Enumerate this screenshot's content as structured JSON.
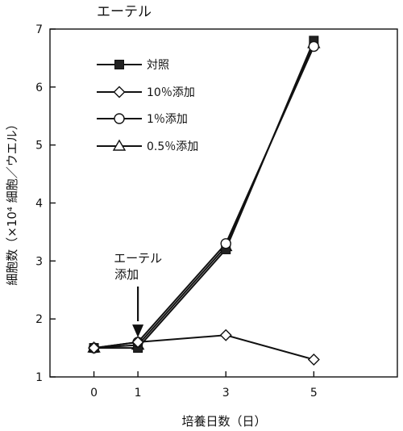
{
  "chart_data": {
    "type": "line",
    "title": "エーテル",
    "xlabel": "培養日数（日）",
    "ylabel": "細胞数（×10⁴ 細胞／ウエル）",
    "x": [
      0,
      1,
      3,
      5
    ],
    "xticks": [
      "0",
      "1",
      "3",
      "5"
    ],
    "xlim": [
      -1,
      6.9
    ],
    "yticks": [
      1,
      2,
      3,
      4,
      5,
      6,
      7
    ],
    "ylim": [
      1,
      7
    ],
    "grid": false,
    "legend_position": "top-left",
    "series": [
      {
        "name": "対照",
        "marker": "filled-square",
        "values": [
          1.5,
          1.5,
          3.2,
          6.8
        ]
      },
      {
        "name": "10％添加",
        "marker": "open-diamond",
        "values": [
          1.5,
          1.6,
          1.72,
          1.3
        ]
      },
      {
        "name": "1％添加",
        "marker": "open-circle",
        "values": [
          1.5,
          1.6,
          3.3,
          6.7
        ]
      },
      {
        "name": "0.5％添加",
        "marker": "open-triangle",
        "values": [
          1.5,
          1.55,
          3.25,
          6.75
        ]
      }
    ],
    "annotation": {
      "lines": [
        "エーテル",
        "添加"
      ],
      "x": 1,
      "y": 1.68
    }
  }
}
